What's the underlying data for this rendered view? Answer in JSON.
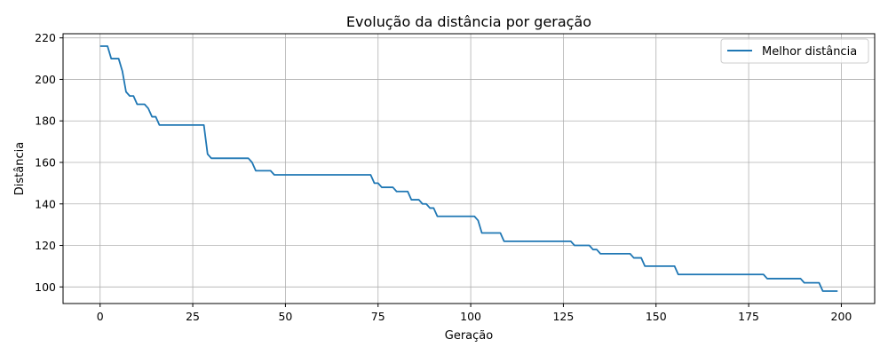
{
  "chart_data": {
    "type": "line",
    "title": "Evolução da distância por geração",
    "xlabel": "Geração",
    "ylabel": "Distância",
    "xlim": [
      -10,
      209
    ],
    "ylim": [
      92,
      222
    ],
    "xticks": [
      0,
      25,
      50,
      75,
      100,
      125,
      150,
      175,
      200
    ],
    "yticks": [
      100,
      120,
      140,
      160,
      180,
      200,
      220
    ],
    "grid": true,
    "legend_position": "top-right",
    "series": [
      {
        "name": "Melhor distância",
        "color": "#1f77b4",
        "points": [
          [
            0,
            216
          ],
          [
            2,
            216
          ],
          [
            3,
            210
          ],
          [
            5,
            210
          ],
          [
            6,
            204
          ],
          [
            7,
            194
          ],
          [
            8,
            192
          ],
          [
            9,
            192
          ],
          [
            10,
            188
          ],
          [
            12,
            188
          ],
          [
            13,
            186
          ],
          [
            14,
            182
          ],
          [
            15,
            182
          ],
          [
            16,
            178
          ],
          [
            28,
            178
          ],
          [
            29,
            164
          ],
          [
            30,
            162
          ],
          [
            40,
            162
          ],
          [
            41,
            160
          ],
          [
            42,
            156
          ],
          [
            46,
            156
          ],
          [
            47,
            154
          ],
          [
            73,
            154
          ],
          [
            74,
            150
          ],
          [
            75,
            150
          ],
          [
            76,
            148
          ],
          [
            79,
            148
          ],
          [
            80,
            146
          ],
          [
            83,
            146
          ],
          [
            84,
            142
          ],
          [
            86,
            142
          ],
          [
            87,
            140
          ],
          [
            88,
            140
          ],
          [
            89,
            138
          ],
          [
            90,
            138
          ],
          [
            91,
            134
          ],
          [
            101,
            134
          ],
          [
            102,
            132
          ],
          [
            103,
            126
          ],
          [
            108,
            126
          ],
          [
            109,
            122
          ],
          [
            127,
            122
          ],
          [
            128,
            120
          ],
          [
            132,
            120
          ],
          [
            133,
            118
          ],
          [
            134,
            118
          ],
          [
            135,
            116
          ],
          [
            143,
            116
          ],
          [
            144,
            114
          ],
          [
            146,
            114
          ],
          [
            147,
            110
          ],
          [
            155,
            110
          ],
          [
            156,
            106
          ],
          [
            179,
            106
          ],
          [
            180,
            104
          ],
          [
            189,
            104
          ],
          [
            190,
            102
          ],
          [
            194,
            102
          ],
          [
            195,
            98
          ],
          [
            199,
            98
          ]
        ]
      }
    ]
  }
}
